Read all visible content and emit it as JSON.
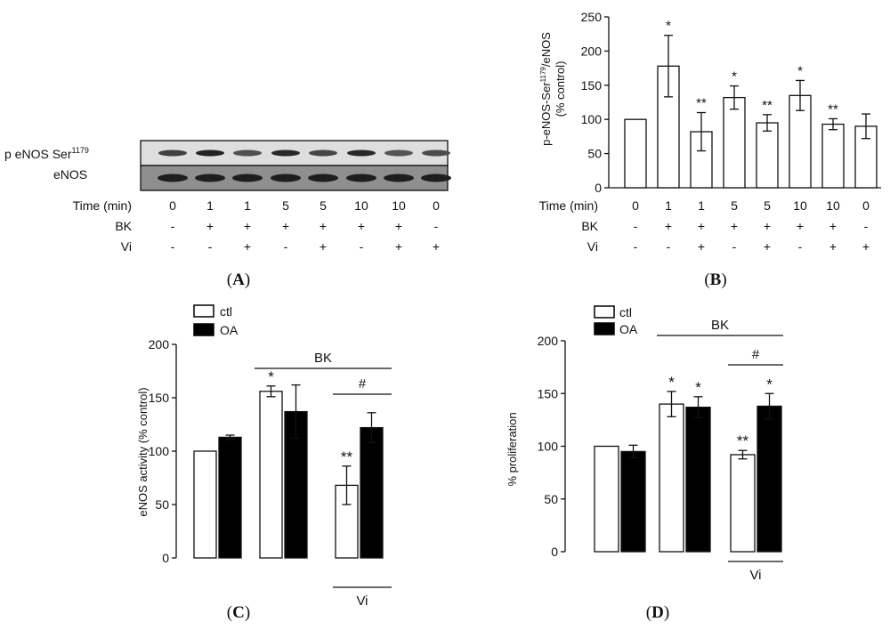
{
  "colors": {
    "ink": "#111111",
    "ctl": "#ffffff",
    "oa": "#000000",
    "blot_bg": "#d9d9d9"
  },
  "panelA": {
    "label_open": "(",
    "label_letter": "A",
    "label_close": ")",
    "band_labels": [
      "p eNOS Ser",
      "eNOS"
    ],
    "band_sup": "1179",
    "row_labels": [
      "Time (min)",
      "BK",
      "Vi"
    ],
    "time": [
      "0",
      "1",
      "1",
      "5",
      "5",
      "10",
      "10",
      "0"
    ],
    "bk": [
      "-",
      "+",
      "+",
      "+",
      "+",
      "+",
      "+",
      "-"
    ],
    "vi": [
      "-",
      "-",
      "+",
      "-",
      "+",
      "-",
      "+",
      "+"
    ],
    "peNOS_intensity": [
      0.55,
      0.85,
      0.4,
      0.8,
      0.5,
      0.8,
      0.35,
      0.45
    ]
  },
  "panelB": {
    "label_open": "(",
    "label_letter": "B",
    "label_close": ")",
    "row_labels": [
      "Time (min)",
      "BK",
      "Vi"
    ],
    "time": [
      "0",
      "1",
      "1",
      "5",
      "5",
      "10",
      "10",
      "0"
    ],
    "bk": [
      "-",
      "+",
      "+",
      "+",
      "+",
      "+",
      "+",
      "-"
    ],
    "vi": [
      "-",
      "-",
      "+",
      "-",
      "+",
      "-",
      "+",
      "+"
    ]
  },
  "panelC": {
    "label_open": "(",
    "label_letter": "C",
    "label_close": ")",
    "legend": [
      "ctl",
      "OA"
    ],
    "group_bk": "BK",
    "group_vi": "Vi",
    "hash": "#"
  },
  "panelD": {
    "label_open": "(",
    "label_letter": "D",
    "label_close": ")",
    "legend": [
      "ctl",
      "OA"
    ],
    "group_bk": "BK",
    "group_vi": "Vi",
    "hash": "#"
  },
  "chart_data": [
    {
      "id": "B",
      "type": "bar",
      "ylabel_line1": "p-eNOS-Ser",
      "ylabel_sup": "1179",
      "ylabel_line1b": "/eNOS",
      "ylabel_line2": "(% control)",
      "ylim": [
        0,
        250
      ],
      "yticks": [
        0,
        50,
        100,
        150,
        200,
        250
      ],
      "values": [
        100,
        178,
        82,
        132,
        95,
        135,
        93,
        90
      ],
      "errors": [
        0,
        45,
        28,
        17,
        12,
        22,
        8,
        18
      ],
      "annotations": [
        "",
        "*",
        "**",
        "*",
        "**",
        "*",
        "**",
        ""
      ]
    },
    {
      "id": "C",
      "type": "bar",
      "ylabel": "eNOS activity (% control)",
      "ylim": [
        0,
        200
      ],
      "yticks": [
        0,
        50,
        100,
        150,
        200
      ],
      "series": [
        {
          "name": "ctl",
          "values": [
            100,
            156,
            68
          ],
          "errors": [
            0,
            5,
            18
          ],
          "annotations": [
            "",
            "*",
            "**"
          ]
        },
        {
          "name": "OA",
          "values": [
            113,
            137,
            122
          ],
          "errors": [
            2,
            25,
            14
          ],
          "annotations": [
            "",
            "",
            ""
          ]
        }
      ]
    },
    {
      "id": "D",
      "type": "bar",
      "ylabel": "% proliferation",
      "ylim": [
        0,
        200
      ],
      "yticks": [
        0,
        50,
        100,
        150,
        200
      ],
      "series": [
        {
          "name": "ctl",
          "values": [
            100,
            140,
            92
          ],
          "errors": [
            0,
            12,
            4
          ],
          "annotations": [
            "",
            "*",
            "**"
          ]
        },
        {
          "name": "OA",
          "values": [
            95,
            137,
            138
          ],
          "errors": [
            6,
            10,
            12
          ],
          "annotations": [
            "",
            "*",
            "*"
          ]
        }
      ]
    }
  ]
}
